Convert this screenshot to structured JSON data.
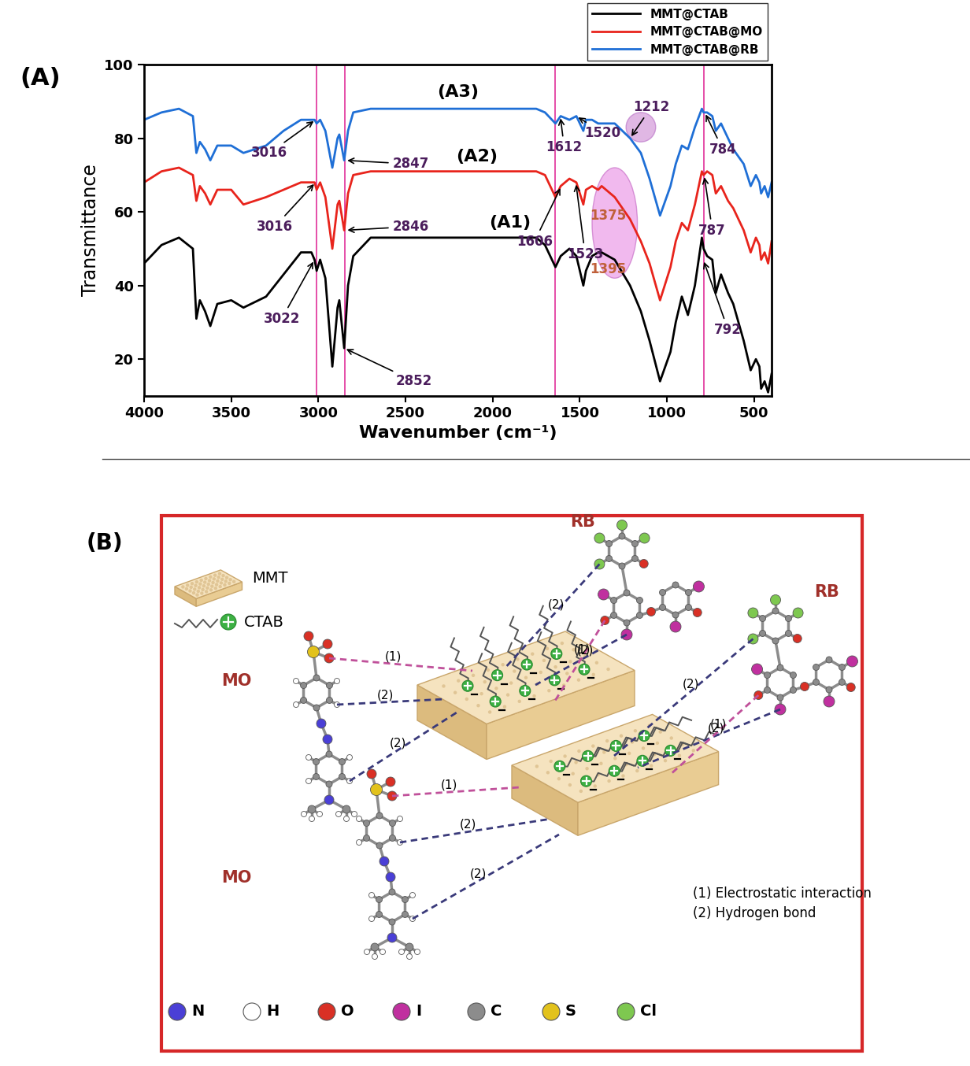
{
  "chart_data": {
    "type": "line",
    "title": "(A)",
    "xlabel": "Wavenumber (cm⁻¹)",
    "ylabel": "Transmittance",
    "xlim": [
      4000,
      400
    ],
    "xticks": [
      4000,
      3500,
      3000,
      2500,
      2000,
      1500,
      1000,
      500
    ],
    "ylim": [
      10,
      100
    ],
    "yticks": [
      20,
      40,
      60,
      80,
      100
    ],
    "legend": "upper right",
    "x": [
      4000,
      3900,
      3800,
      3720,
      3700,
      3680,
      3650,
      3620,
      3580,
      3500,
      3430,
      3300,
      3200,
      3100,
      3040,
      3022,
      3010,
      2990,
      2960,
      2920,
      2890,
      2880,
      2852,
      2830,
      2800,
      2700,
      2500,
      2000,
      1750,
      1700,
      1640,
      1610,
      1560,
      1520,
      1480,
      1465,
      1430,
      1395,
      1375,
      1300,
      1212,
      1150,
      1100,
      1040,
      980,
      950,
      915,
      880,
      840,
      800,
      790,
      770,
      740,
      720,
      690,
      650,
      620,
      560,
      520,
      490,
      470,
      460,
      440,
      420,
      400
    ],
    "series": [
      {
        "name": "MMT@CTAB",
        "label": "(A1)",
        "color": "#000000",
        "values": [
          46,
          51,
          53,
          50,
          31,
          36,
          33,
          29,
          35,
          36,
          34,
          37,
          43,
          49,
          49,
          47,
          44,
          47,
          42,
          18,
          34,
          36,
          23,
          40,
          48,
          53,
          53,
          53,
          53,
          51,
          45,
          48,
          50,
          48,
          40,
          44,
          48,
          49,
          49,
          47,
          40,
          33,
          25,
          14,
          22,
          30,
          37,
          32,
          40,
          53,
          50,
          48,
          47,
          38,
          43,
          38,
          35,
          25,
          17,
          20,
          18,
          12,
          14,
          11,
          16
        ]
      },
      {
        "name": "MMT@CTAB@MO",
        "label": "(A2)",
        "color": "#e8241c",
        "values": [
          68,
          71,
          72,
          70,
          63,
          67,
          65,
          62,
          66,
          66,
          62,
          64,
          66,
          68,
          68,
          68,
          66,
          68,
          64,
          50,
          62,
          63,
          55,
          65,
          70,
          71,
          71,
          71,
          71,
          70,
          64,
          67,
          69,
          68,
          62,
          66,
          67,
          66,
          67,
          64,
          58,
          52,
          46,
          36,
          45,
          52,
          57,
          55,
          62,
          71,
          70,
          71,
          70,
          65,
          67,
          63,
          61,
          55,
          49,
          53,
          51,
          47,
          49,
          46,
          52
        ]
      },
      {
        "name": "MMT@CTAB@RB",
        "label": "(A3)",
        "color": "#1f6fd6",
        "values": [
          85,
          87,
          88,
          86,
          76,
          79,
          77,
          74,
          78,
          78,
          76,
          78,
          82,
          85,
          85,
          85,
          84,
          85,
          82,
          72,
          80,
          81,
          74,
          82,
          87,
          88,
          88,
          88,
          88,
          87,
          84,
          86,
          85,
          86,
          82,
          85,
          85,
          84,
          84,
          84,
          80,
          76,
          69,
          59,
          67,
          73,
          78,
          77,
          83,
          88,
          87,
          87,
          86,
          82,
          84,
          80,
          77,
          73,
          67,
          70,
          68,
          65,
          67,
          64,
          68
        ]
      }
    ],
    "reference_lines": [
      3010,
      2850,
      1640,
      790
    ],
    "annotations": [
      {
        "text": "3016",
        "x": 3016,
        "y": 85
      },
      {
        "text": "2847",
        "x": 2847,
        "y": 74
      },
      {
        "text": "1612",
        "x": 1612,
        "y": 86
      },
      {
        "text": "1520",
        "x": 1520,
        "y": 86
      },
      {
        "text": "1212",
        "x": 1212,
        "y": 80
      },
      {
        "text": "784",
        "x": 784,
        "y": 87
      },
      {
        "text": "3016",
        "x": 3016,
        "y": 68
      },
      {
        "text": "2846",
        "x": 2846,
        "y": 55
      },
      {
        "text": "1606",
        "x": 1606,
        "y": 67
      },
      {
        "text": "1523",
        "x": 1523,
        "y": 68
      },
      {
        "text": "1375",
        "x": 1375,
        "y": 67
      },
      {
        "text": "787",
        "x": 787,
        "y": 70
      },
      {
        "text": "3022",
        "x": 3022,
        "y": 47
      },
      {
        "text": "2852",
        "x": 2852,
        "y": 23
      },
      {
        "text": "1395",
        "x": 1395,
        "y": 49
      },
      {
        "text": "792",
        "x": 792,
        "y": 47
      }
    ]
  },
  "diagram": {
    "label": "(B)",
    "key": [
      {
        "name": "MMT"
      },
      {
        "name": "CTAB"
      }
    ],
    "dyes": [
      {
        "name": "MO",
        "bonds": [
          "(1)",
          "(2)",
          "(2)"
        ]
      },
      {
        "name": "MO",
        "bonds": [
          "(1)",
          "(2)",
          "(2)"
        ]
      },
      {
        "name": "RB",
        "bonds": [
          "(2)",
          "(2)",
          "(1)"
        ]
      },
      {
        "name": "RB",
        "bonds": [
          "(2)",
          "(2)",
          "(1)"
        ]
      }
    ],
    "interactions": [
      {
        "mark": "(1)",
        "text": "(1) Electrostatic interaction",
        "color": "#c0509a"
      },
      {
        "mark": "(2)",
        "text": "(2) Hydrogen bond",
        "color": "#3a3a7a"
      }
    ],
    "atoms": [
      {
        "symbol": "N",
        "color": "#4a3fd6"
      },
      {
        "symbol": "H",
        "color": "#ffffff"
      },
      {
        "symbol": "O",
        "color": "#d93025"
      },
      {
        "symbol": "I",
        "color": "#c0309f"
      },
      {
        "symbol": "C",
        "color": "#8c8c8c"
      },
      {
        "symbol": "S",
        "color": "#e2c21c"
      },
      {
        "symbol": "Cl",
        "color": "#7ec850"
      }
    ]
  }
}
